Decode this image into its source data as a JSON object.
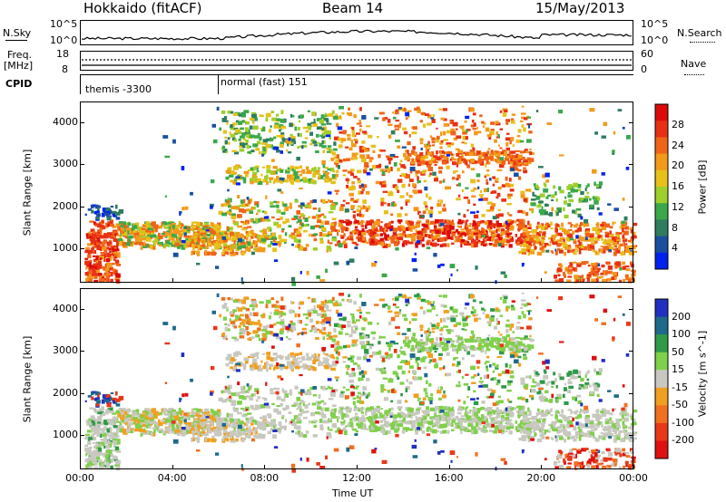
{
  "header": {
    "station": "Hokkaido (fitACF)",
    "beam": "Beam 14",
    "date": "15/May/2013"
  },
  "side_labels": {
    "nsky": "N.Sky",
    "freq": "Freq.",
    "freq_unit": "[MHz]",
    "cpid": "CPID",
    "nsearch": "N.Search",
    "nave": "Nave"
  },
  "noise_axis": {
    "top": "10^5",
    "bottom": "10^0",
    "right_top": "10^5",
    "right_bottom": "10^0"
  },
  "freq_axis": {
    "left_top": "18",
    "left_bottom": "8",
    "right_top": "60",
    "right_bottom": "0"
  },
  "cpid": {
    "first": "themis -3300",
    "second": "normal (fast) 151"
  },
  "chart_data": [
    {
      "type": "heatmap",
      "name": "power",
      "ylabel": "Slant Range [km]",
      "xlabel": "Time UT",
      "x_ticks": [
        "00:00",
        "04:00",
        "08:00",
        "12:00",
        "16:00",
        "20:00",
        "00:00"
      ],
      "y_ticks": [
        "1000",
        "2000",
        "3000",
        "4000"
      ],
      "ylim": [
        180,
        4500
      ],
      "xlim_hours": [
        0,
        24
      ],
      "colorbar": {
        "label": "Power [dB]",
        "ticks": [
          "4",
          "8",
          "12",
          "16",
          "20",
          "24",
          "28"
        ],
        "colors": [
          "#0022ee",
          "#1a4fa0",
          "#2e7d5e",
          "#3aa84a",
          "#9fcf2a",
          "#e8c01a",
          "#f39a1a",
          "#f06418",
          "#e83014",
          "#dd0a0a"
        ]
      }
    },
    {
      "type": "heatmap",
      "name": "velocity",
      "ylabel": "Slant Range [km]",
      "xlabel": "Time UT",
      "x_ticks": [
        "00:00",
        "04:00",
        "08:00",
        "12:00",
        "16:00",
        "20:00",
        "00:00"
      ],
      "y_ticks": [
        "1000",
        "2000",
        "3000",
        "4000"
      ],
      "ylim": [
        180,
        4500
      ],
      "xlim_hours": [
        0,
        24
      ],
      "colorbar": {
        "label": "Velocity [m s^-1]",
        "ticks": [
          "200",
          "100",
          "50",
          "15",
          "-15",
          "-50",
          "-100",
          "-200"
        ],
        "colors": [
          "#2030c0",
          "#1e6a8a",
          "#2f9a48",
          "#7fd04a",
          "#c8c8c0",
          "#f0a020",
          "#f07020",
          "#e83818",
          "#e01010"
        ]
      }
    }
  ],
  "x_axis_title": "Time UT"
}
